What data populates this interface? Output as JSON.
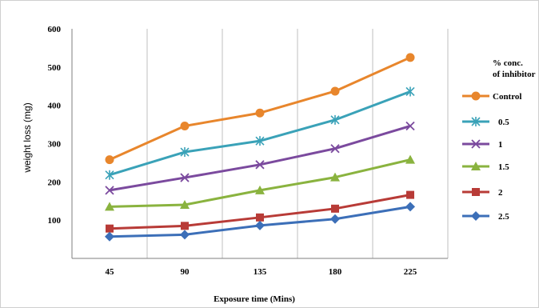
{
  "chart_data": {
    "type": "line",
    "xlabel": "Exposure time (Mins)",
    "ylabel": "weight loss (mg)",
    "x": [
      45,
      90,
      135,
      180,
      225
    ],
    "ylim": [
      0,
      600
    ],
    "yticks": [
      100,
      200,
      300,
      400,
      500,
      600
    ],
    "grid": "vertical",
    "legend_title": [
      "% conc.",
      "of inhibitor"
    ],
    "legend_position": "right",
    "series": [
      {
        "name": "Control",
        "color": "#e8862c",
        "marker": "circle",
        "values": [
          258,
          346,
          380,
          437,
          525
        ]
      },
      {
        "name": "0.5",
        "color": "#3aa2b8",
        "marker": "asterisk",
        "values": [
          218,
          278,
          307,
          362,
          436
        ]
      },
      {
        "name": "1",
        "color": "#7b4a9e",
        "marker": "x",
        "values": [
          178,
          211,
          245,
          287,
          346
        ]
      },
      {
        "name": "1.5",
        "color": "#8ab33f",
        "marker": "triangle",
        "values": [
          135,
          140,
          178,
          212,
          258
        ]
      },
      {
        "name": "2",
        "color": "#b83b37",
        "marker": "square",
        "values": [
          78,
          85,
          107,
          130,
          166
        ]
      },
      {
        "name": "2.5",
        "color": "#3c6fb8",
        "marker": "diamond",
        "values": [
          57,
          62,
          86,
          103,
          135
        ]
      }
    ]
  }
}
